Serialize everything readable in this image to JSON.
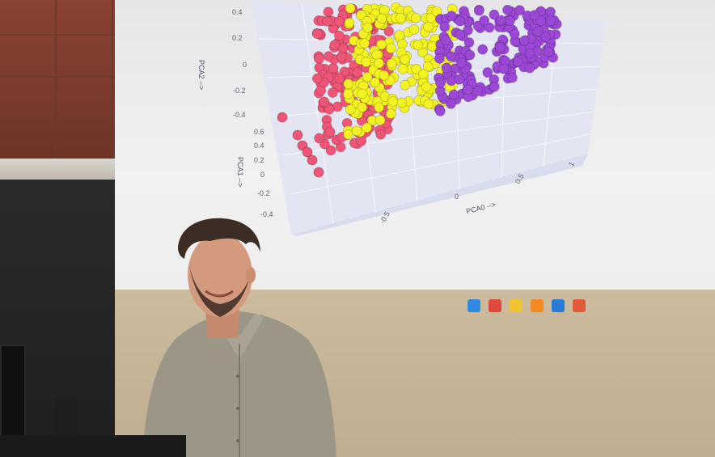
{
  "scene": {
    "description_tags": [
      "presentation",
      "projector-screen",
      "presenter"
    ]
  },
  "slide": {
    "chart_data": {
      "type": "scatter",
      "title": "",
      "axes": {
        "pca0": {
          "label": "PCA0 -->",
          "ticks": [
            "-0.5",
            "0",
            "0.5",
            "1"
          ]
        },
        "pca1": {
          "label": "PCA1 -->",
          "ticks": [
            "0.6",
            "0.4",
            "0.2",
            "0",
            "-0.2",
            "-0.4"
          ]
        },
        "pca2": {
          "label": "PCA2 -->",
          "ticks": [
            "0.4",
            "0.2",
            "0",
            "-0.2",
            "-0.4"
          ]
        }
      },
      "series": [
        {
          "color": "#ee5577"
        },
        {
          "color": "#f2f222"
        },
        {
          "color": "#9b48d6"
        }
      ],
      "grid": true,
      "legend": "none"
    }
  },
  "taskbar": {
    "icons": [
      {
        "name": "windows-icon",
        "color": "#2f8be0"
      },
      {
        "name": "browser-icon",
        "color": "#e04a3a"
      },
      {
        "name": "folder-icon",
        "color": "#f2c230"
      },
      {
        "name": "bolt-icon",
        "color": "#f28a20"
      },
      {
        "name": "vscode-icon",
        "color": "#2a7bd6"
      },
      {
        "name": "app-icon",
        "color": "#e05a3a"
      }
    ]
  }
}
